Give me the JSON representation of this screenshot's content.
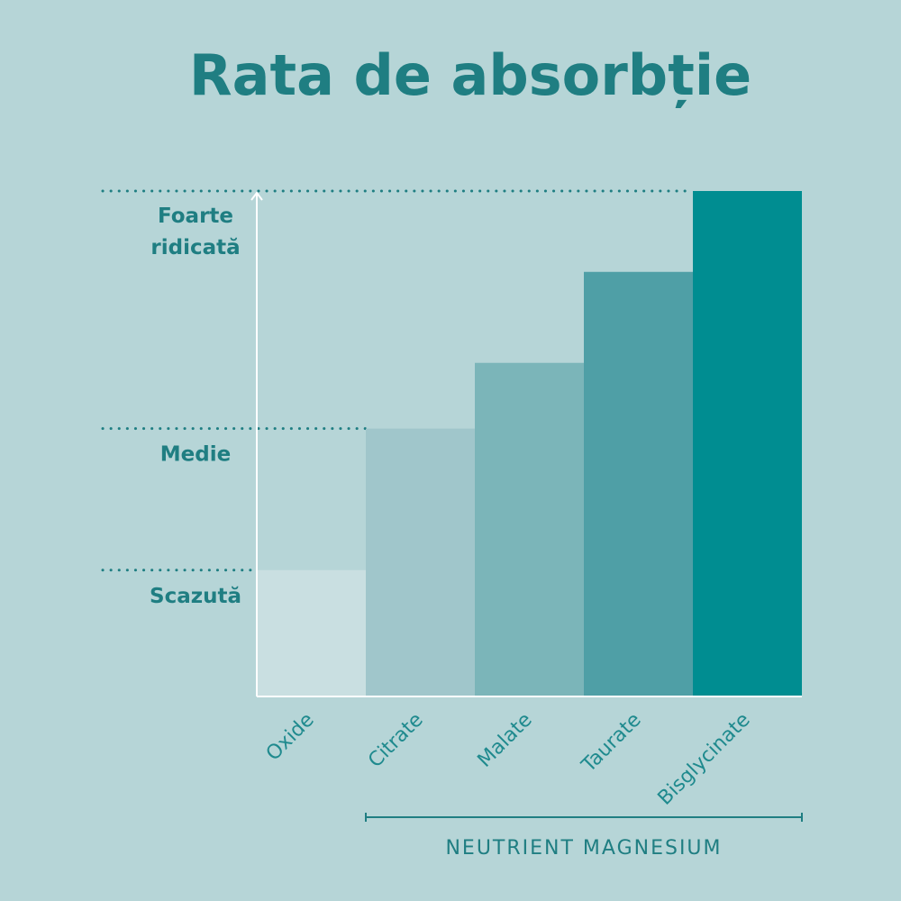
{
  "chart_data": {
    "type": "bar",
    "title": "Rata de absorbție",
    "categories": [
      "Oxide",
      "Citrate",
      "Malate",
      "Taurate",
      "Bisglycinate"
    ],
    "values": [
      25,
      53,
      66,
      84,
      100
    ],
    "ylim": [
      0,
      100
    ],
    "y_levels": [
      {
        "label": "Scazută",
        "value": 25,
        "lines": [
          "Scazută"
        ]
      },
      {
        "label": "Medie",
        "value": 53,
        "lines": [
          "Medie"
        ]
      },
      {
        "label": "Foarte ridicată",
        "value": 100,
        "lines": [
          "Foarte",
          "ridicată"
        ]
      }
    ],
    "bar_colors": [
      "#c9dfe1",
      "#a0c6cb",
      "#7bb5b9",
      "#4f9fa6",
      "#008d91"
    ],
    "group_label": "NEUTRIENT MAGNESIUM",
    "grid": false,
    "legend": "none"
  }
}
